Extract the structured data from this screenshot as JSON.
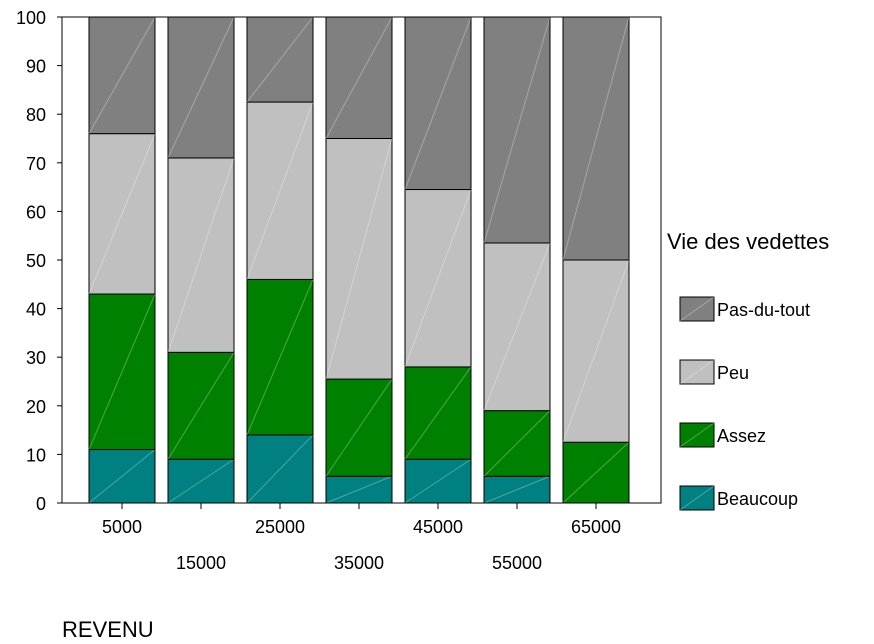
{
  "chart_data": {
    "type": "bar",
    "stacked": true,
    "categories": [
      "5000",
      "15000",
      "25000",
      "35000",
      "45000",
      "55000",
      "65000"
    ],
    "series": [
      {
        "name": "Beaucoup",
        "color": "#008080",
        "values": [
          11,
          9,
          14,
          5.5,
          9,
          5.5,
          0
        ]
      },
      {
        "name": "Assez",
        "color": "#008000",
        "values": [
          32,
          22,
          32,
          20,
          19,
          13.5,
          12.5
        ]
      },
      {
        "name": "Peu",
        "color": "#c0c0c0",
        "values": [
          33,
          40,
          36.5,
          49.5,
          36.5,
          34.5,
          37.5
        ]
      },
      {
        "name": "Pas-du-tout",
        "color": "#808080",
        "values": [
          24,
          29,
          17.5,
          25,
          35.5,
          46.5,
          50
        ]
      }
    ],
    "yticks": [
      "0",
      "10",
      "20",
      "30",
      "40",
      "50",
      "60",
      "70",
      "80",
      "90",
      "100"
    ],
    "ylim": [
      0,
      100
    ],
    "xlabel": "REVENU",
    "legend_title": "Vie des vedettes",
    "legend_order": [
      "Pas-du-tout",
      "Peu",
      "Assez",
      "Beaucoup"
    ],
    "legend_position": "right",
    "grid": false
  }
}
